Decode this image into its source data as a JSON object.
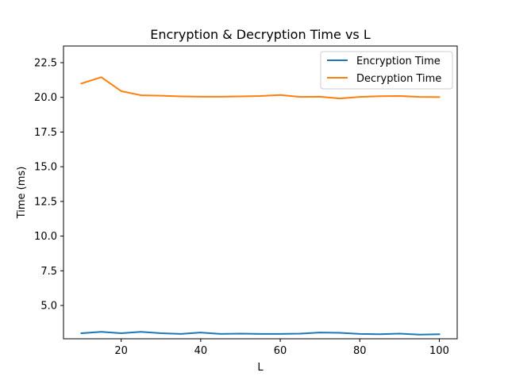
{
  "chart_data": {
    "type": "line",
    "title": "Encryption & Decryption Time vs L",
    "xlabel": "L",
    "ylabel": "Time (ms)",
    "xlim": [
      5.5,
      104.5
    ],
    "ylim": [
      2.6,
      23.7
    ],
    "xticks": [
      20,
      40,
      60,
      80,
      100
    ],
    "yticks": [
      5.0,
      7.5,
      10.0,
      12.5,
      15.0,
      17.5,
      20.0,
      22.5
    ],
    "xtick_labels": [
      "20",
      "40",
      "60",
      "80",
      "100"
    ],
    "ytick_labels": [
      "5.0",
      "7.5",
      "10.0",
      "12.5",
      "15.0",
      "17.5",
      "20.0",
      "22.5"
    ],
    "grid": false,
    "legend_position": "top-right",
    "x": [
      10,
      15,
      20,
      25,
      30,
      35,
      40,
      45,
      50,
      55,
      60,
      65,
      70,
      75,
      80,
      85,
      90,
      95,
      100
    ],
    "series": [
      {
        "name": "Encryption Time",
        "color": "#1f77b4",
        "values": [
          3.0,
          3.1,
          3.0,
          3.1,
          3.0,
          2.95,
          3.05,
          2.95,
          2.97,
          2.95,
          2.95,
          2.97,
          3.05,
          3.03,
          2.95,
          2.93,
          2.97,
          2.9,
          2.93
        ]
      },
      {
        "name": "Decryption Time",
        "color": "#ff7f0e",
        "values": [
          21.0,
          21.45,
          20.45,
          20.15,
          20.12,
          20.07,
          20.05,
          20.05,
          20.07,
          20.1,
          20.17,
          20.03,
          20.05,
          19.92,
          20.03,
          20.08,
          20.1,
          20.03,
          20.02
        ]
      }
    ]
  }
}
